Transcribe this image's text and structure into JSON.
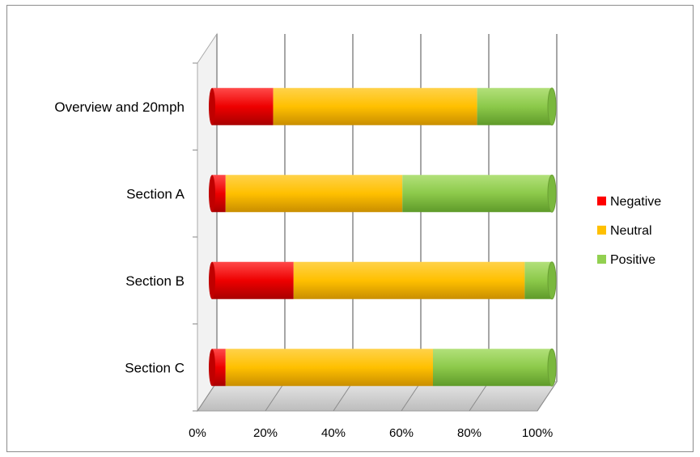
{
  "chart_data": {
    "type": "bar",
    "orientation": "horizontal",
    "stacked": "percent",
    "style": "3d-cylinder",
    "categories": [
      "Overview and 20mph",
      "Section A",
      "Section B",
      "Section C"
    ],
    "series": [
      {
        "name": "Negative",
        "values": [
          18,
          4,
          24,
          4
        ]
      },
      {
        "name": "Neutral",
        "values": [
          60,
          52,
          68,
          61
        ]
      },
      {
        "name": "Positive",
        "values": [
          22,
          44,
          8,
          35
        ]
      }
    ],
    "x_ticks": [
      "0%",
      "20%",
      "40%",
      "60%",
      "80%",
      "100%"
    ],
    "xlim": [
      0,
      100
    ],
    "grid": true,
    "legend_position": "right",
    "colors": {
      "Negative": "#ff0000",
      "Neutral": "#ffc000",
      "Positive": "#92d050"
    }
  }
}
